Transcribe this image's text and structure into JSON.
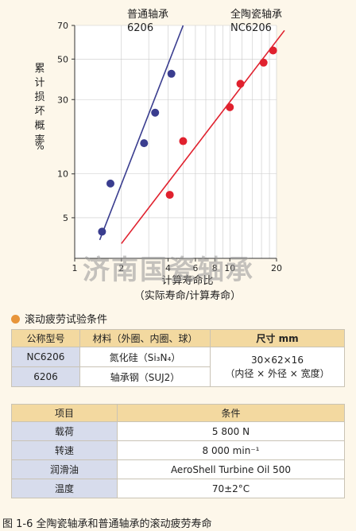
{
  "chart_data": {
    "type": "scatter",
    "xscale": "log",
    "yscale": "weibull",
    "xlim": [
      1,
      20
    ],
    "ylim": [
      2.6,
      70
    ],
    "x_ticks": [
      {
        "v": 1,
        "label": "1"
      },
      {
        "v": 2,
        "label": "2"
      },
      {
        "v": 4,
        "label": "4"
      },
      {
        "v": 6,
        "label": "6"
      },
      {
        "v": 8,
        "label": "8"
      },
      {
        "v": 10,
        "label": "10"
      },
      {
        "v": 20,
        "label": "20"
      }
    ],
    "y_ticks": [
      5,
      10,
      30,
      50,
      70
    ],
    "xlabel": "计算寿命比",
    "xlabel_sub": "（实际寿命/计算寿命）",
    "ylabel": "累计损坏概率",
    "ylabel_unit": "%",
    "series": [
      {
        "name": "普通轴承\n6206",
        "color": "#3a3d8f",
        "points": [
          [
            1.5,
            4.0
          ],
          [
            1.7,
            8.6
          ],
          [
            2.8,
            16
          ],
          [
            3.3,
            25
          ],
          [
            4.2,
            42
          ]
        ],
        "fit": [
          [
            1.45,
            3.5
          ],
          [
            5.0,
            70
          ]
        ]
      },
      {
        "name": "全陶瓷轴承\nNC6206",
        "color": "#e0212e",
        "points": [
          [
            4.1,
            7.2
          ],
          [
            5.0,
            16.5
          ],
          [
            10.0,
            27
          ],
          [
            11.7,
            37
          ],
          [
            16.5,
            48
          ],
          [
            19.0,
            55
          ]
        ],
        "fit": [
          [
            2.0,
            3.3
          ],
          [
            22.5,
            67
          ]
        ]
      }
    ]
  },
  "watermark": "济南国瓷轴承",
  "section_title": "滚动疲劳试验条件",
  "spec_table": {
    "headers": [
      "公称型号",
      "材料（外圈、内圈、球）",
      "尺寸 mm"
    ],
    "rows": [
      {
        "model": "NC6206",
        "material": "氮化硅（Si₃N₄）"
      },
      {
        "model": "6206",
        "material": "轴承钢（SUJ2）"
      }
    ],
    "size_line1": "30×62×16",
    "size_line2": "（内径 × 外径 × 宽度）"
  },
  "cond_table": {
    "headers": [
      "项目",
      "条件"
    ],
    "rows": [
      {
        "item": "载荷",
        "value": "5 800 N"
      },
      {
        "item": "转速",
        "value": "8 000 min⁻¹"
      },
      {
        "item": "润滑油",
        "value": "AeroShell Turbine Oil 500"
      },
      {
        "item": "温度",
        "value": "70±2°C"
      }
    ]
  },
  "caption": "图 1-6 全陶瓷轴承和普通轴承的滚动疲劳寿命"
}
